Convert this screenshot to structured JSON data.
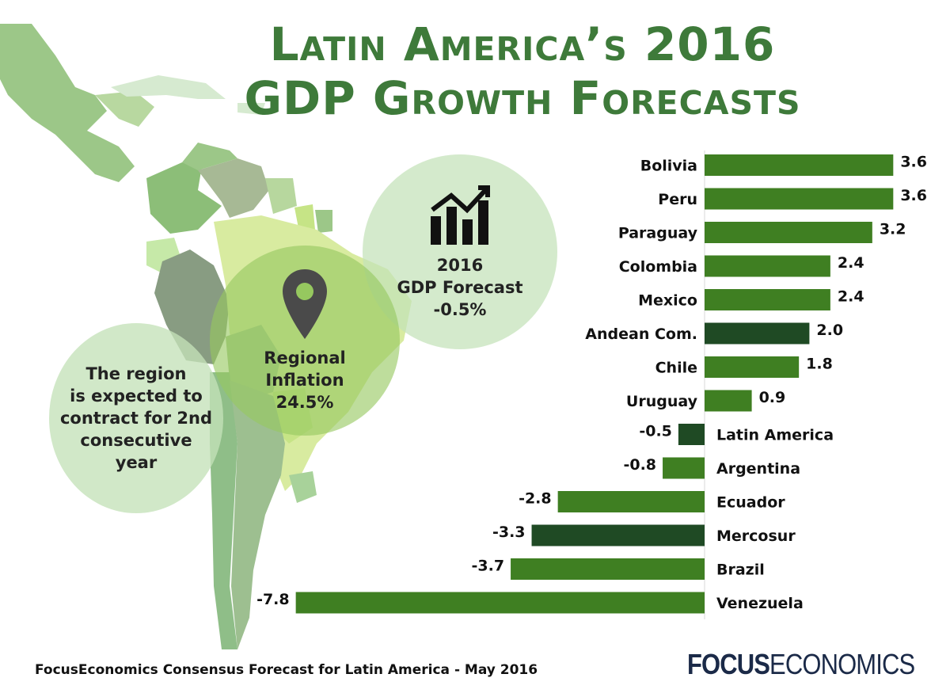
{
  "title": {
    "line1": "Latin America’s 2016",
    "line2": "GDP Growth Forecasts"
  },
  "bubbles": {
    "gdp": {
      "line1": "2016",
      "line2": "GDP Forecast",
      "line3": "-0.5%"
    },
    "inflation": {
      "line1": "Regional",
      "line2": "Inflation",
      "line3": "24.5%"
    },
    "contract": {
      "line1": "The region",
      "line2": "is expected to",
      "line3": "contract for 2nd",
      "line4": "consecutive",
      "line5": "year"
    }
  },
  "icons": {
    "gdp": "bar-chart-trend-icon",
    "inflation": "location-pin-icon"
  },
  "chart_data": {
    "type": "bar",
    "orientation": "horizontal",
    "categories": [
      "Bolivia",
      "Peru",
      "Paraguay",
      "Colombia",
      "Mexico",
      "Andean Com.",
      "Chile",
      "Uruguay",
      "Latin America",
      "Argentina",
      "Ecuador",
      "Mercosur",
      "Brazil",
      "Venezuela"
    ],
    "values": [
      3.6,
      3.6,
      3.2,
      2.4,
      2.4,
      2.0,
      1.8,
      0.9,
      -0.5,
      -0.8,
      -2.8,
      -3.3,
      -3.7,
      -7.8
    ],
    "value_labels": [
      "3.6",
      "3.6",
      "3.2",
      "2.4",
      "2.4",
      "2.0",
      "1.8",
      "0.9",
      "-0.5",
      "-0.8",
      "-2.8",
      "-3.3",
      "-3.7",
      "-7.8"
    ],
    "aggregates": [
      "Andean Com.",
      "Latin America",
      "Mercosur"
    ],
    "colors": {
      "country": "#3f7f22",
      "aggregate": "#1f4a24"
    },
    "xlim": [
      -7.8,
      3.6
    ],
    "grid": false
  },
  "footnote": "FocusEconomics Consensus Forecast for Latin America - May 2016",
  "logo": {
    "strong": "FOCUS",
    "light": "ECONOMICS"
  },
  "colors": {
    "title": "#3e7a3a",
    "logo": "#1b2a48"
  }
}
